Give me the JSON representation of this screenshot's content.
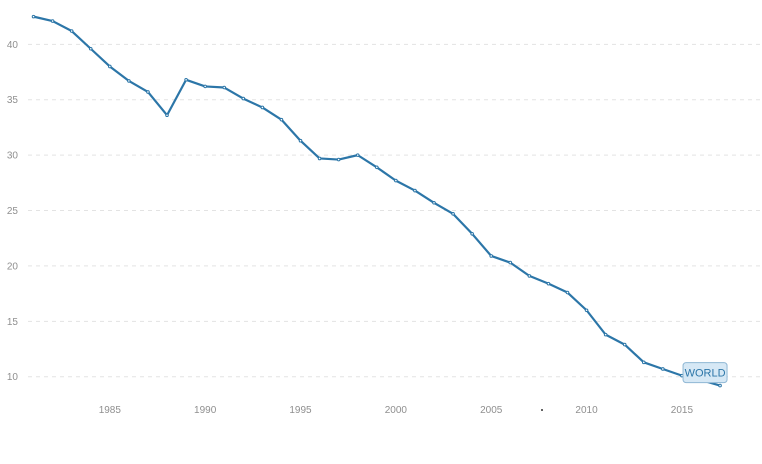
{
  "chart_data": {
    "type": "line",
    "title": "",
    "xlabel": "",
    "ylabel": "",
    "xlim": [
      1980.5,
      2019.2
    ],
    "ylim": [
      7.9,
      44
    ],
    "grid": true,
    "x_ticks": [
      1985,
      1990,
      1995,
      2000,
      2005,
      2010,
      2015
    ],
    "x_tick_labels": [
      "1985",
      "1990",
      "1995",
      "2000",
      "2005",
      "2010",
      "2015"
    ],
    "y_ticks": [
      10,
      15,
      20,
      25,
      30,
      35,
      40
    ],
    "y_tick_labels": [
      "10",
      "15",
      "20",
      "25",
      "30",
      "35",
      "40"
    ],
    "x": [
      1981,
      1982,
      1983,
      1984,
      1985,
      1986,
      1987,
      1988,
      1989,
      1990,
      1991,
      1992,
      1993,
      1994,
      1995,
      1996,
      1997,
      1998,
      1999,
      2000,
      2001,
      2002,
      2003,
      2004,
      2005,
      2006,
      2007,
      2008,
      2009,
      2010,
      2011,
      2012,
      2013,
      2014,
      2015,
      2016,
      2017
    ],
    "series": [
      {
        "name": "WORLD",
        "color": "#2c76a8",
        "values": [
          42.5,
          42.1,
          41.2,
          39.6,
          38.0,
          36.7,
          35.7,
          33.6,
          36.8,
          36.2,
          36.1,
          35.1,
          34.3,
          33.2,
          31.3,
          29.7,
          29.6,
          30.0,
          28.9,
          27.7,
          26.8,
          25.7,
          24.7,
          22.9,
          20.9,
          20.3,
          19.1,
          18.4,
          17.6,
          16.0,
          13.8,
          12.9,
          11.3,
          10.7,
          10.1,
          9.7,
          9.2
        ]
      }
    ],
    "legend": {
      "position": "end-of-line",
      "label": "WORLD"
    }
  }
}
